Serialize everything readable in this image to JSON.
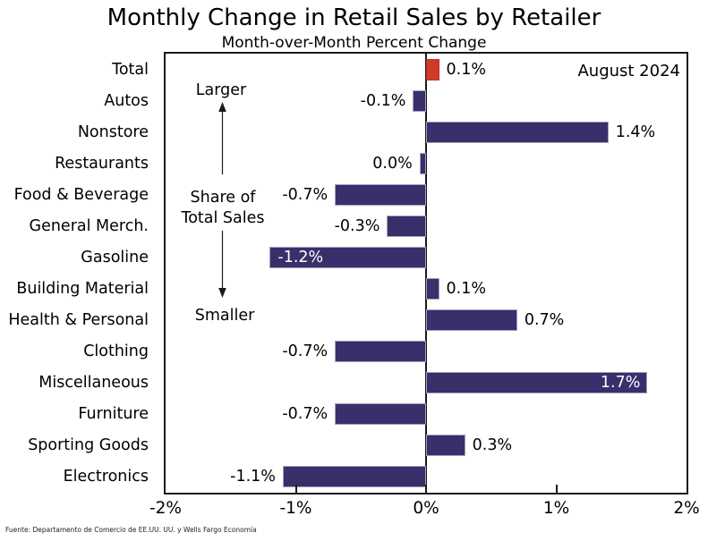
{
  "chart_data": {
    "type": "bar",
    "orientation": "horizontal",
    "title": "Monthly Change in Retail Sales by Retailer",
    "subtitle": "Month-over-Month Percent Change",
    "date_label": "August 2024",
    "xlabel": "",
    "ylabel": "",
    "xlim": [
      -2,
      2
    ],
    "grid": false,
    "legend": null,
    "x_ticks": [
      {
        "value": -2,
        "label": "-2%"
      },
      {
        "value": -1,
        "label": "-1%"
      },
      {
        "value": 0,
        "label": "0%"
      },
      {
        "value": 1,
        "label": "1%"
      },
      {
        "value": 2,
        "label": "2%"
      }
    ],
    "categories": [
      "Total",
      "Autos",
      "Nonstore",
      "Restaurants",
      "Food & Beverage",
      "General Merch.",
      "Gasoline",
      "Building Material",
      "Health & Personal",
      "Clothing",
      "Miscellaneous",
      "Furniture",
      "Sporting Goods",
      "Electronics"
    ],
    "bars": [
      {
        "category": "Total",
        "value": 0.1,
        "label": "0.1%",
        "highlight": true
      },
      {
        "category": "Autos",
        "value": -0.1,
        "label": "-0.1%"
      },
      {
        "category": "Nonstore",
        "value": 1.4,
        "label": "1.4%"
      },
      {
        "category": "Restaurants",
        "value": -0.05,
        "label": "0.0%"
      },
      {
        "category": "Food & Beverage",
        "value": -0.7,
        "label": "-0.7%"
      },
      {
        "category": "General Merch.",
        "value": -0.3,
        "label": "-0.3%"
      },
      {
        "category": "Gasoline",
        "value": -1.2,
        "label": "-1.2%",
        "label_inside": true
      },
      {
        "category": "Building Material",
        "value": 0.1,
        "label": "0.1%"
      },
      {
        "category": "Health & Personal",
        "value": 0.7,
        "label": "0.7%"
      },
      {
        "category": "Clothing",
        "value": -0.7,
        "label": "-0.7%"
      },
      {
        "category": "Miscellaneous",
        "value": 1.7,
        "label": "1.7%",
        "label_inside": true
      },
      {
        "category": "Furniture",
        "value": -0.7,
        "label": "-0.7%"
      },
      {
        "category": "Sporting Goods",
        "value": 0.3,
        "label": "0.3%"
      },
      {
        "category": "Electronics",
        "value": -1.1,
        "label": "-1.1%"
      }
    ],
    "annotations": {
      "larger": "Larger",
      "share_line1": "Share of",
      "share_line2": "Total Sales",
      "smaller": "Smaller"
    },
    "colors": {
      "bar": "#37306a",
      "highlight": "#d13a2a",
      "inside_label_text": "#ffffff",
      "axis": "#1a1a1a"
    }
  },
  "source": "Fuente: Departamento de Comercio de EE.UU. UU. y Wells Fargo Economía"
}
